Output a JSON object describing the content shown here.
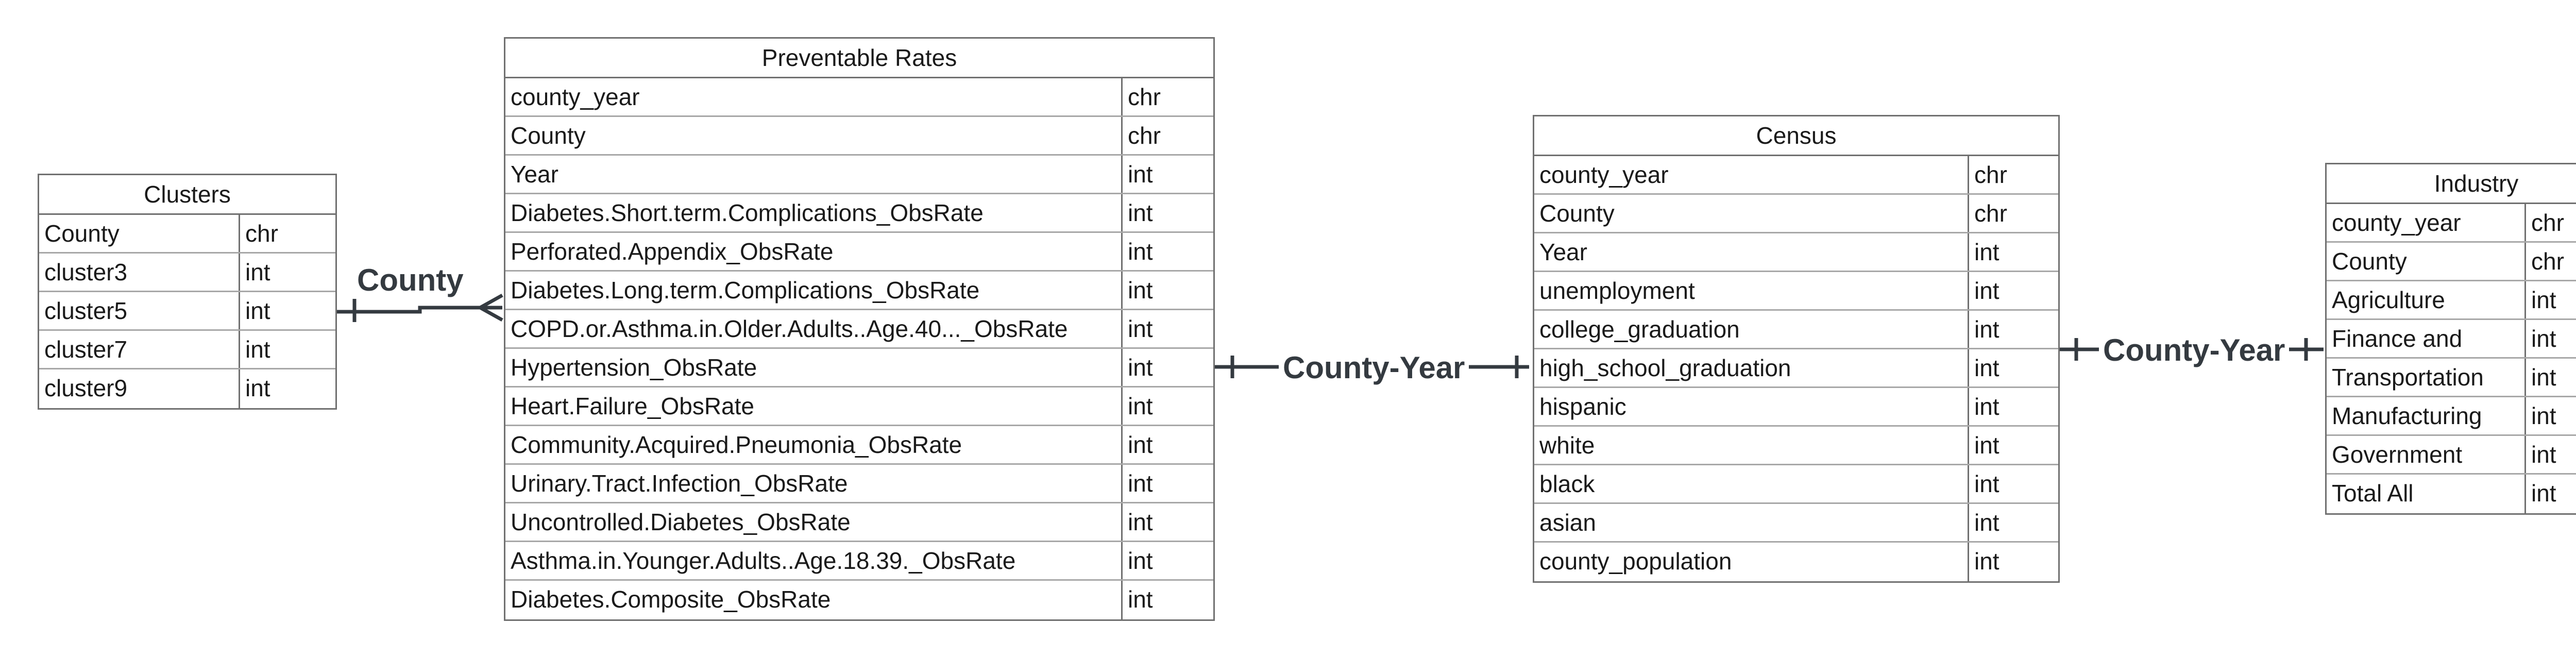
{
  "entities": {
    "clusters": {
      "title": "Clusters",
      "rows": [
        {
          "name": "County",
          "type": "chr"
        },
        {
          "name": "cluster3",
          "type": "int"
        },
        {
          "name": "cluster5",
          "type": "int"
        },
        {
          "name": "cluster7",
          "type": "int"
        },
        {
          "name": "cluster9",
          "type": "int"
        }
      ]
    },
    "preventable": {
      "title": "Preventable Rates",
      "rows": [
        {
          "name": "county_year",
          "type": "chr"
        },
        {
          "name": "County",
          "type": "chr"
        },
        {
          "name": "Year",
          "type": "int"
        },
        {
          "name": "Diabetes.Short.term.Complications_ObsRate",
          "type": "int"
        },
        {
          "name": "Perforated.Appendix_ObsRate",
          "type": "int"
        },
        {
          "name": "Diabetes.Long.term.Complications_ObsRate",
          "type": "int"
        },
        {
          "name": "COPD.or.Asthma.in.Older.Adults..Age.40..._ObsRate",
          "type": "int"
        },
        {
          "name": "Hypertension_ObsRate",
          "type": "int"
        },
        {
          "name": "Heart.Failure_ObsRate",
          "type": "int"
        },
        {
          "name": "Community.Acquired.Pneumonia_ObsRate",
          "type": "int"
        },
        {
          "name": "Urinary.Tract.Infection_ObsRate",
          "type": "int"
        },
        {
          "name": "Uncontrolled.Diabetes_ObsRate",
          "type": "int"
        },
        {
          "name": "Asthma.in.Younger.Adults..Age.18.39._ObsRate",
          "type": "int"
        },
        {
          "name": "Diabetes.Composite_ObsRate",
          "type": "int"
        }
      ]
    },
    "census": {
      "title": "Census",
      "rows": [
        {
          "name": "county_year",
          "type": "chr"
        },
        {
          "name": "County",
          "type": "chr"
        },
        {
          "name": "Year",
          "type": "int"
        },
        {
          "name": "unemployment",
          "type": "int"
        },
        {
          "name": "college_graduation",
          "type": "int"
        },
        {
          "name": "high_school_graduation",
          "type": "int"
        },
        {
          "name": "hispanic",
          "type": "int"
        },
        {
          "name": "white",
          "type": "int"
        },
        {
          "name": "black",
          "type": "int"
        },
        {
          "name": "asian",
          "type": "int"
        },
        {
          "name": "county_population",
          "type": "int"
        }
      ]
    },
    "industry": {
      "title": "Industry",
      "rows": [
        {
          "name": "county_year",
          "type": "chr"
        },
        {
          "name": "County",
          "type": "chr"
        },
        {
          "name": "Agriculture",
          "type": "int"
        },
        {
          "name": "Finance and",
          "type": "int"
        },
        {
          "name": "Transportation",
          "type": "int"
        },
        {
          "name": "Manufacturing",
          "type": "int"
        },
        {
          "name": "Government",
          "type": "int"
        },
        {
          "name": "Total All",
          "type": "int"
        }
      ]
    }
  },
  "relationships": {
    "clusters_preventable": {
      "label": "County",
      "from": "one",
      "to": "many"
    },
    "preventable_census": {
      "label": "County-Year",
      "from": "one",
      "to": "one"
    },
    "census_industry": {
      "label": "County-Year",
      "from": "one",
      "to": "one"
    }
  },
  "colors": {
    "connector": "#343a40",
    "border": "#707070",
    "text": "#1a1a1a"
  }
}
